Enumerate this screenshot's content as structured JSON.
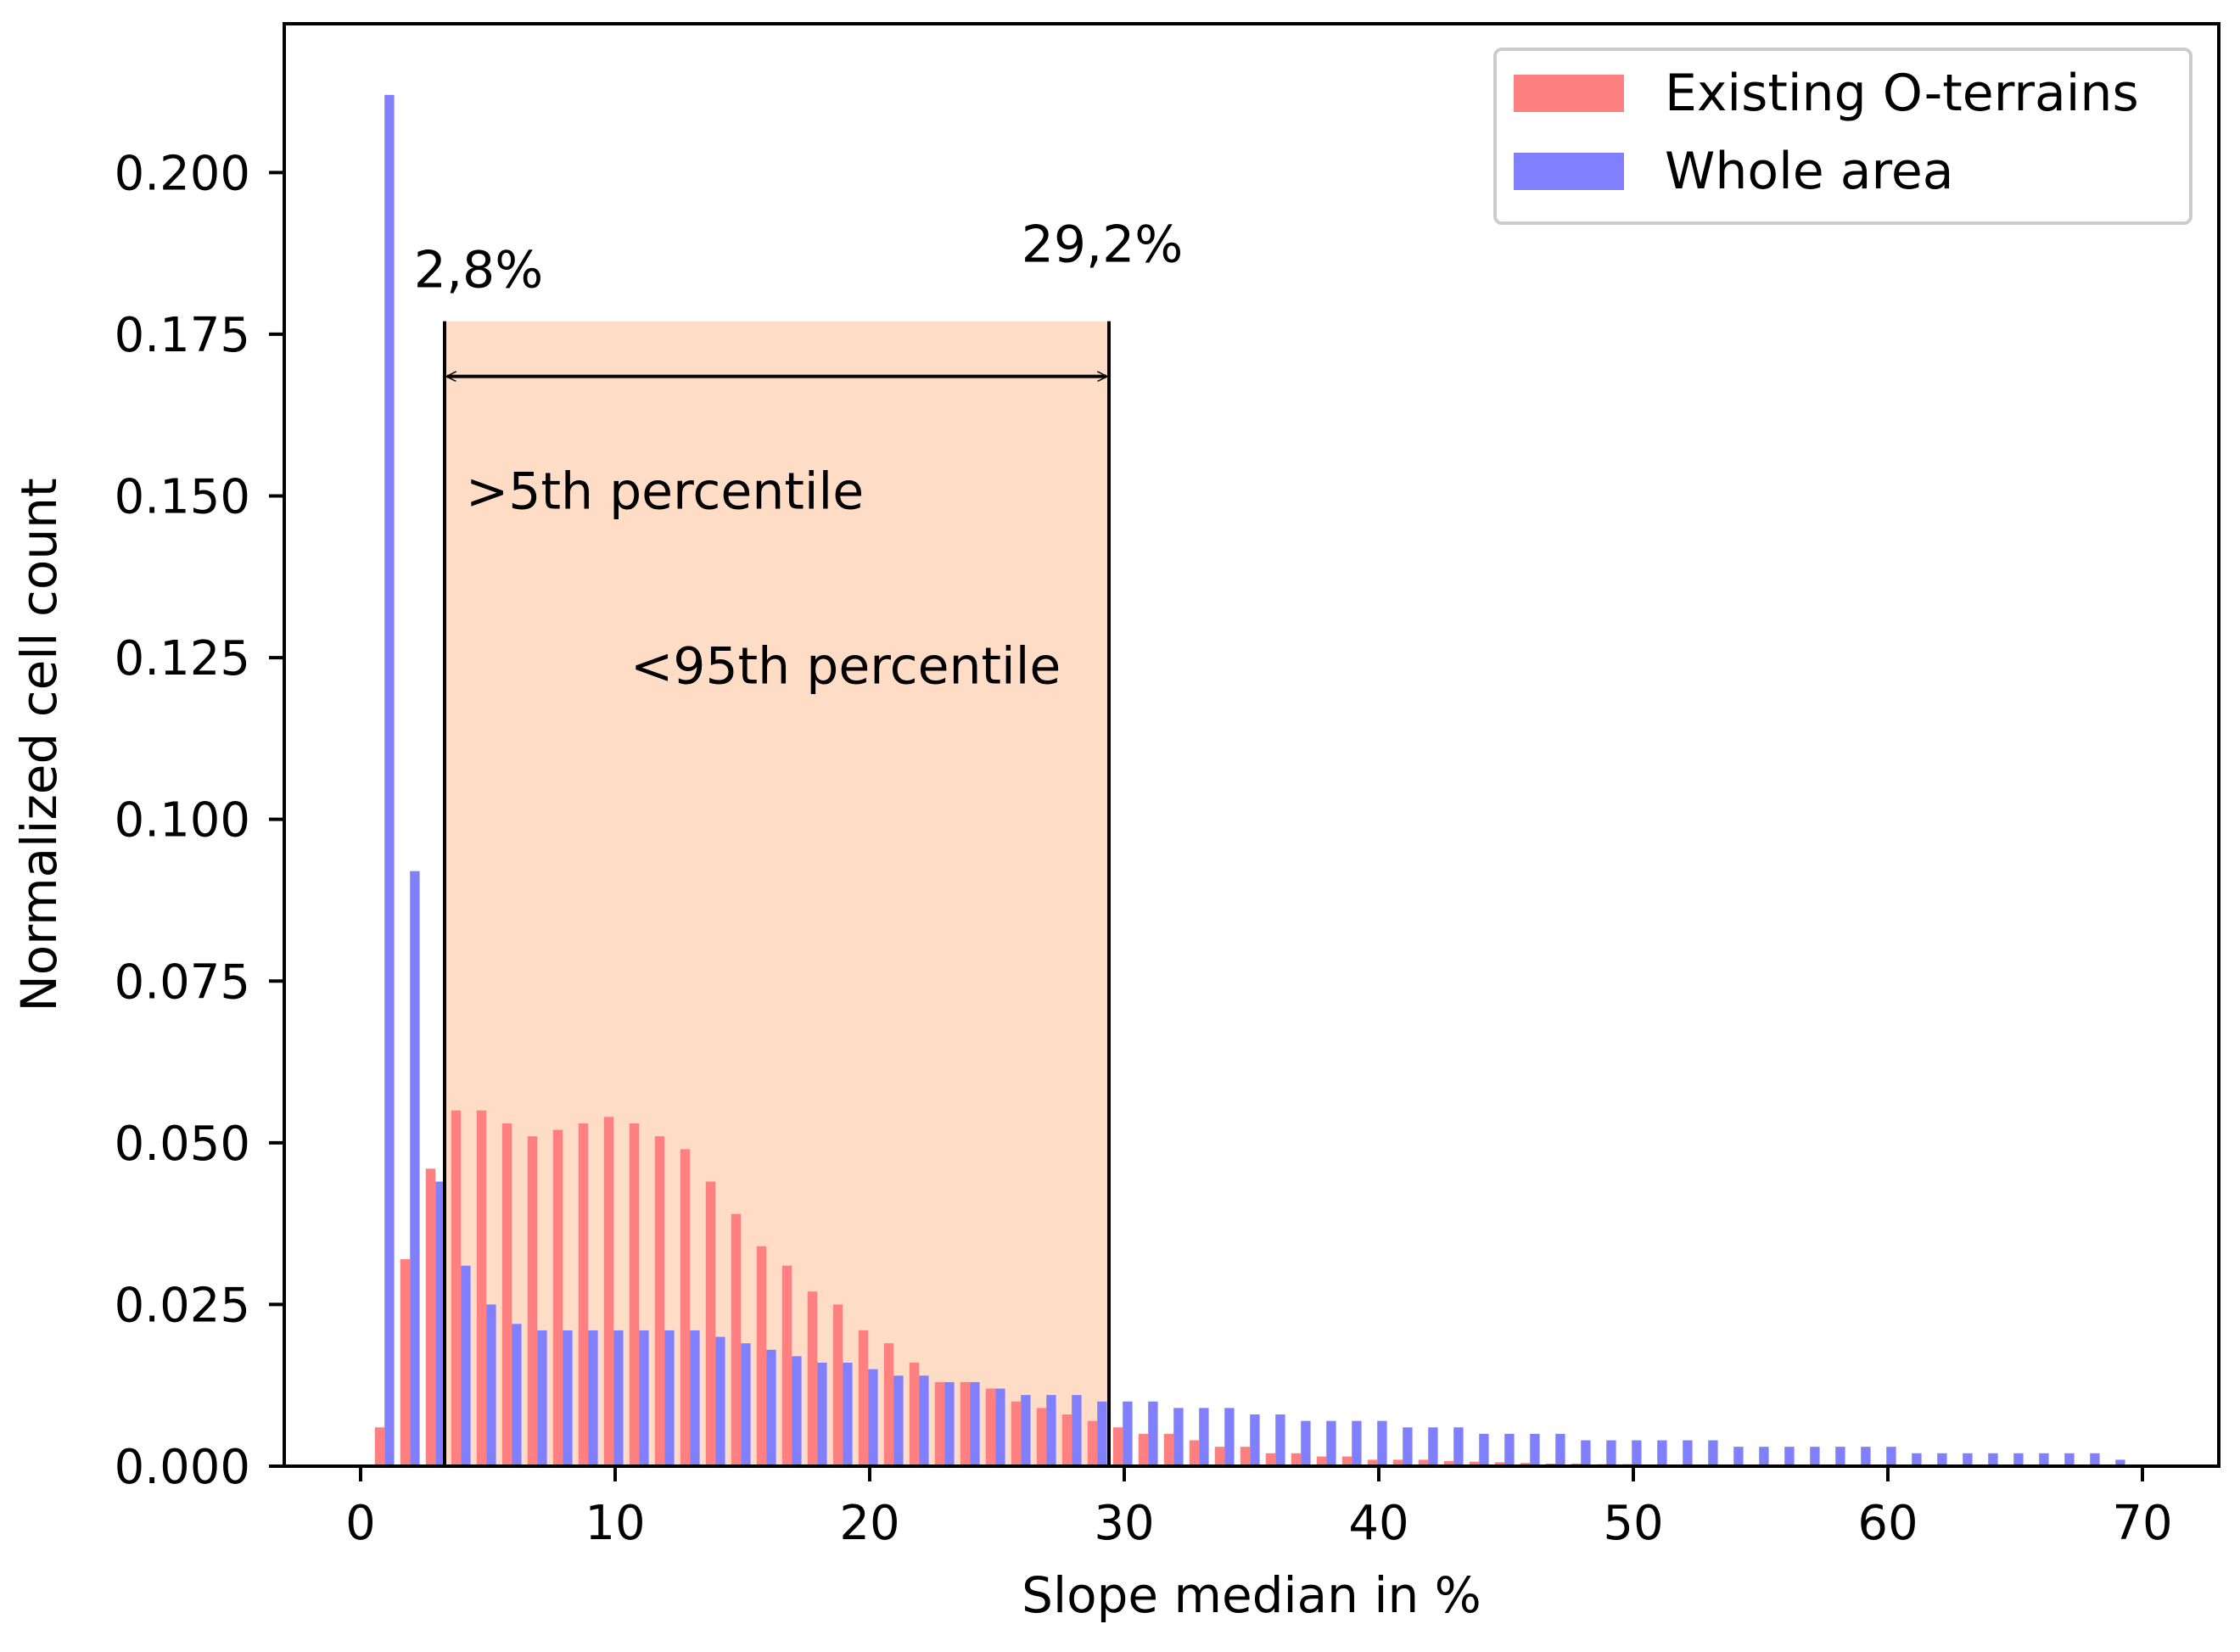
{
  "chart_data": {
    "type": "bar",
    "title": "",
    "xlabel": "Slope median in %",
    "ylabel": "Normalized cell count",
    "xlim": [
      -3,
      73
    ],
    "ylim": [
      0,
      0.223
    ],
    "xticks": [
      0,
      10,
      20,
      30,
      40,
      50,
      60,
      70
    ],
    "xtick_labels": [
      "0",
      "10",
      "20",
      "30",
      "40",
      "50",
      "60",
      "70"
    ],
    "yticks": [
      0,
      0.025,
      0.05,
      0.075,
      0.1,
      0.125,
      0.15,
      0.175,
      0.2
    ],
    "ytick_labels": [
      "0.000",
      "0.025",
      "0.050",
      "0.075",
      "0.100",
      "0.125",
      "0.150",
      "0.175",
      "0.200"
    ],
    "grid": false,
    "legend_position": "top-right",
    "series": [
      {
        "name": "Existing O-terrains",
        "color": "#ff8080",
        "x": [
          1,
          2,
          3,
          4,
          5,
          6,
          7,
          8,
          9,
          10,
          11,
          12,
          13,
          14,
          15,
          16,
          17,
          18,
          19,
          20,
          21,
          22,
          23,
          24,
          25,
          26,
          27,
          28,
          29,
          30,
          31,
          32,
          33,
          34,
          35,
          36,
          37,
          38,
          39,
          40,
          41,
          42,
          43,
          44,
          45,
          46,
          47,
          48,
          49,
          50,
          51,
          52,
          53,
          54,
          55,
          56,
          57,
          58,
          59,
          60,
          61,
          62,
          63,
          64,
          65,
          66,
          67,
          68,
          69
        ],
        "values": [
          0.006,
          0.032,
          0.046,
          0.055,
          0.055,
          0.053,
          0.051,
          0.052,
          0.053,
          0.054,
          0.053,
          0.051,
          0.049,
          0.044,
          0.039,
          0.034,
          0.031,
          0.027,
          0.025,
          0.021,
          0.019,
          0.016,
          0.013,
          0.013,
          0.012,
          0.01,
          0.009,
          0.008,
          0.007,
          0.006,
          0.005,
          0.005,
          0.004,
          0.003,
          0.003,
          0.002,
          0.002,
          0.0015,
          0.0015,
          0.001,
          0.001,
          0.001,
          0.0008,
          0.0007,
          0.0006,
          0.0005,
          0.0004,
          0.0004,
          0.0003,
          0.0003,
          0.0002,
          0.0002,
          0.0002,
          0.0001,
          0.0001,
          0.0001,
          0.0001,
          0.0001,
          0.0001,
          0.0001,
          0,
          0,
          0,
          0,
          0,
          0,
          0,
          0,
          0
        ]
      },
      {
        "name": "Whole area",
        "color": "#8080ff",
        "x": [
          1,
          2,
          3,
          4,
          5,
          6,
          7,
          8,
          9,
          10,
          11,
          12,
          13,
          14,
          15,
          16,
          17,
          18,
          19,
          20,
          21,
          22,
          23,
          24,
          25,
          26,
          27,
          28,
          29,
          30,
          31,
          32,
          33,
          34,
          35,
          36,
          37,
          38,
          39,
          40,
          41,
          42,
          43,
          44,
          45,
          46,
          47,
          48,
          49,
          50,
          51,
          52,
          53,
          54,
          55,
          56,
          57,
          58,
          59,
          60,
          61,
          62,
          63,
          64,
          65,
          66,
          67,
          68,
          69
        ],
        "values": [
          0.212,
          0.092,
          0.044,
          0.031,
          0.025,
          0.022,
          0.021,
          0.021,
          0.021,
          0.021,
          0.021,
          0.021,
          0.021,
          0.02,
          0.019,
          0.018,
          0.017,
          0.016,
          0.016,
          0.015,
          0.014,
          0.014,
          0.013,
          0.013,
          0.012,
          0.011,
          0.011,
          0.011,
          0.01,
          0.01,
          0.01,
          0.009,
          0.009,
          0.009,
          0.008,
          0.008,
          0.007,
          0.007,
          0.007,
          0.007,
          0.006,
          0.006,
          0.006,
          0.005,
          0.005,
          0.005,
          0.005,
          0.004,
          0.004,
          0.004,
          0.004,
          0.004,
          0.004,
          0.003,
          0.003,
          0.003,
          0.003,
          0.003,
          0.003,
          0.003,
          0.002,
          0.002,
          0.002,
          0.002,
          0.002,
          0.002,
          0.002,
          0.002,
          0.001
        ]
      }
    ],
    "shaded_range": {
      "x_start": 3.3,
      "x_end": 29.4,
      "y_top": 0.177,
      "color": "#ffdcc5"
    },
    "annotations": {
      "left_percent": "2,8%",
      "right_percent": "29,2%",
      "lower_bound_text": ">5th percentile",
      "upper_bound_text": "<95th percentile"
    }
  }
}
